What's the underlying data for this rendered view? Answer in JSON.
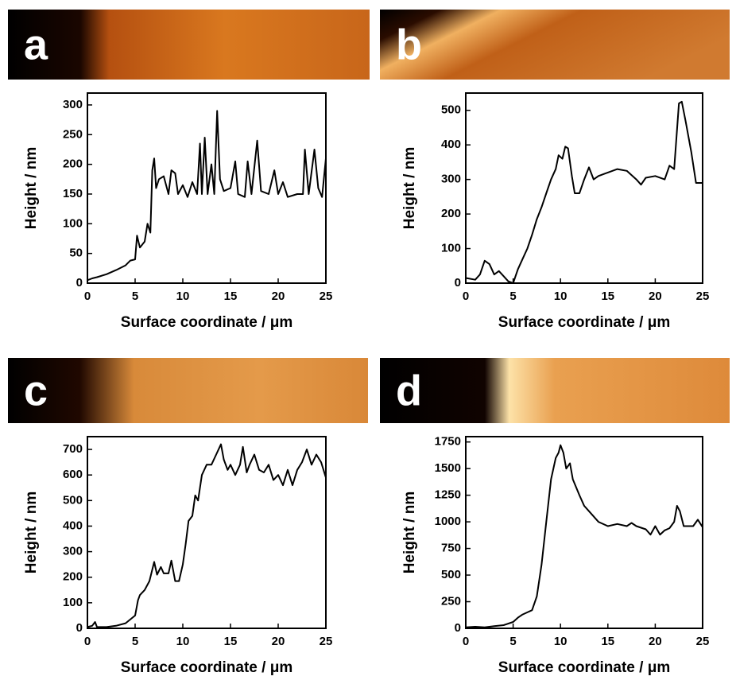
{
  "chart_data": [
    {
      "type": "line",
      "panel": "a",
      "xlabel": "Surface coordinate / μm",
      "ylabel": "Height / nm",
      "color": "#000000",
      "xlim": [
        0,
        25
      ],
      "ylim": [
        0,
        320
      ],
      "xticks": [
        0,
        5,
        10,
        15,
        20,
        25
      ],
      "yticks": [
        0,
        50,
        100,
        150,
        200,
        250,
        300
      ],
      "x": [
        0,
        0.5,
        1,
        2,
        3,
        4,
        4.5,
        5,
        5.2,
        5.5,
        6,
        6.3,
        6.6,
        6.8,
        7,
        7.2,
        7.5,
        8,
        8.5,
        8.8,
        9.2,
        9.5,
        10,
        10.5,
        11,
        11.5,
        11.8,
        12,
        12.3,
        12.6,
        13,
        13.3,
        13.6,
        13.9,
        14.3,
        15,
        15.5,
        15.8,
        16.5,
        16.8,
        17.2,
        17.8,
        18.2,
        19,
        19.6,
        20,
        20.5,
        21,
        22,
        22.6,
        22.8,
        23.2,
        23.8,
        24.2,
        24.6,
        25
      ],
      "values": [
        5,
        8,
        10,
        15,
        22,
        30,
        38,
        40,
        80,
        60,
        70,
        100,
        85,
        190,
        210,
        160,
        175,
        180,
        150,
        190,
        185,
        150,
        165,
        145,
        170,
        150,
        235,
        150,
        245,
        150,
        200,
        150,
        290,
        175,
        155,
        160,
        205,
        150,
        145,
        205,
        150,
        240,
        155,
        150,
        190,
        150,
        170,
        145,
        150,
        150,
        225,
        150,
        225,
        160,
        145,
        210
      ]
    },
    {
      "type": "line",
      "panel": "b",
      "xlabel": "Surface coordinate / μm",
      "ylabel": "Height / nm",
      "color": "#000000",
      "xlim": [
        0,
        25
      ],
      "ylim": [
        0,
        550
      ],
      "xticks": [
        0,
        5,
        10,
        15,
        20,
        25
      ],
      "yticks": [
        0,
        100,
        200,
        300,
        400,
        500
      ],
      "x": [
        0,
        1,
        1.5,
        2,
        2.5,
        3,
        3.5,
        4,
        4.5,
        5,
        5.5,
        6,
        6.5,
        7,
        7.5,
        8,
        8.5,
        9,
        9.5,
        9.8,
        10.2,
        10.5,
        10.8,
        11.2,
        11.5,
        12,
        12.5,
        13,
        13.5,
        14,
        15,
        16,
        17,
        18,
        18.5,
        19,
        20,
        21,
        21.5,
        22,
        22.5,
        22.8,
        23.2,
        23.8,
        24.3,
        25
      ],
      "values": [
        15,
        10,
        25,
        65,
        55,
        25,
        35,
        20,
        5,
        0,
        40,
        70,
        100,
        140,
        185,
        220,
        260,
        300,
        330,
        370,
        360,
        395,
        390,
        310,
        260,
        260,
        300,
        335,
        300,
        310,
        320,
        330,
        325,
        300,
        285,
        305,
        310,
        300,
        340,
        330,
        520,
        525,
        470,
        380,
        290,
        290
      ]
    },
    {
      "type": "line",
      "panel": "c",
      "xlabel": "Surface coordinate / μm",
      "ylabel": "Height / nm",
      "color": "#000000",
      "xlim": [
        0,
        25
      ],
      "ylim": [
        0,
        750
      ],
      "xticks": [
        0,
        5,
        10,
        15,
        20,
        25
      ],
      "yticks": [
        0,
        100,
        200,
        300,
        400,
        500,
        600,
        700
      ],
      "x": [
        0,
        0.5,
        0.8,
        1,
        2,
        3,
        4,
        5,
        5.3,
        5.5,
        6,
        6.5,
        7,
        7.3,
        7.7,
        8,
        8.5,
        8.8,
        9.2,
        9.6,
        10,
        10.3,
        10.6,
        11,
        11.3,
        11.6,
        12,
        12.5,
        13,
        13.5,
        14,
        14.3,
        14.7,
        15,
        15.5,
        16,
        16.3,
        16.7,
        17,
        17.5,
        18,
        18.5,
        19,
        19.5,
        20,
        20.5,
        21,
        21.5,
        22,
        22.5,
        23,
        23.5,
        24,
        24.5,
        25
      ],
      "values": [
        5,
        10,
        25,
        5,
        5,
        10,
        20,
        50,
        110,
        130,
        150,
        185,
        260,
        210,
        240,
        215,
        215,
        265,
        185,
        185,
        250,
        330,
        420,
        440,
        520,
        500,
        600,
        640,
        640,
        680,
        720,
        660,
        620,
        640,
        600,
        640,
        710,
        610,
        640,
        680,
        620,
        610,
        640,
        580,
        600,
        560,
        620,
        560,
        620,
        650,
        700,
        640,
        680,
        650,
        590
      ]
    },
    {
      "type": "line",
      "panel": "d",
      "xlabel": "Surface coordinate / μm",
      "ylabel": "Height / nm",
      "color": "#000000",
      "xlim": [
        0,
        25
      ],
      "ylim": [
        0,
        1800
      ],
      "xticks": [
        0,
        5,
        10,
        15,
        20,
        25
      ],
      "yticks": [
        0,
        250,
        500,
        750,
        1000,
        1250,
        1500,
        1750
      ],
      "x": [
        0,
        1,
        2,
        3,
        4,
        5,
        5.5,
        6,
        6.5,
        7,
        7.5,
        8,
        8.5,
        9,
        9.5,
        9.8,
        10,
        10.3,
        10.6,
        11,
        11.3,
        12,
        12.5,
        13,
        14,
        15,
        16,
        17,
        17.5,
        18,
        19,
        19.5,
        20,
        20.5,
        21,
        21.5,
        22,
        22.3,
        22.6,
        23,
        24,
        24.5,
        25
      ],
      "values": [
        10,
        15,
        10,
        20,
        30,
        60,
        100,
        130,
        150,
        170,
        300,
        600,
        1000,
        1400,
        1600,
        1650,
        1720,
        1650,
        1500,
        1550,
        1400,
        1250,
        1150,
        1100,
        1000,
        960,
        980,
        960,
        990,
        960,
        930,
        880,
        960,
        880,
        920,
        940,
        1000,
        1150,
        1100,
        960,
        960,
        1020,
        950
      ]
    }
  ]
}
